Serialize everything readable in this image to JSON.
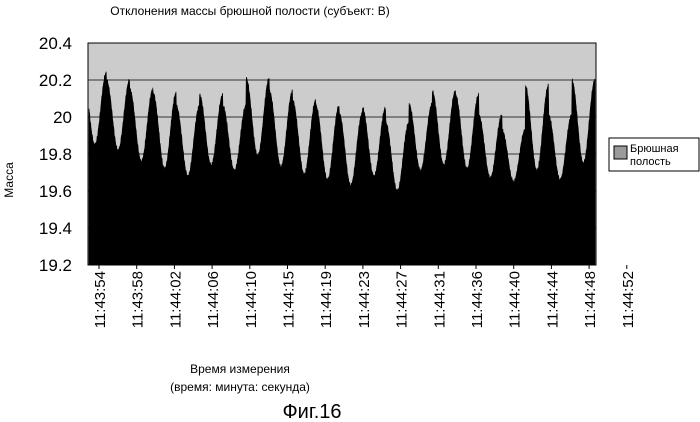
{
  "chart_data": {
    "type": "area",
    "title": "Отклонения массы брюшной полости (субъект: B)",
    "ylabel": "Масса",
    "xlabel_line1": "Время измерения",
    "xlabel_line2": "(время: минута: секунда)",
    "ylim": [
      19.2,
      20.4
    ],
    "yticks": [
      "20.4",
      "20.2",
      "20",
      "19.8",
      "19.6",
      "19.4",
      "19.2"
    ],
    "ytick_values": [
      20.4,
      20.2,
      20.0,
      19.8,
      19.6,
      19.4,
      19.2
    ],
    "grid": true,
    "legend_position": "right",
    "plot_background": "#cccccc",
    "series_color": "#000000",
    "series": [
      {
        "name": "Брюшная полость",
        "peaks": [
          20.24,
          20.2,
          20.15,
          20.13,
          20.06,
          20.12,
          20.06,
          20.21,
          20.14,
          20.09,
          20.06,
          20.02,
          20.05,
          19.97,
          20.07,
          20.14,
          20.12,
          20.01,
          19.93,
          20.17,
          20.01,
          20.2
        ],
        "troughs": [
          19.85,
          19.82,
          19.76,
          19.72,
          19.68,
          19.74,
          19.71,
          19.79,
          19.73,
          19.69,
          19.66,
          19.63,
          19.68,
          19.6,
          19.71,
          19.74,
          19.72,
          19.67,
          19.65,
          19.71,
          19.66,
          19.75
        ]
      }
    ],
    "xticks": [
      "11:43:54",
      "11:43:58",
      "11:44:02",
      "11:44:06",
      "11:44:10",
      "11:44:15",
      "11:44:19",
      "11:44:23",
      "11:44:27",
      "11:44:31",
      "11:44:36",
      "11:44:40",
      "11:44:44",
      "11:44:48",
      "11:44:52"
    ]
  },
  "figure_caption": "Фиг.16"
}
